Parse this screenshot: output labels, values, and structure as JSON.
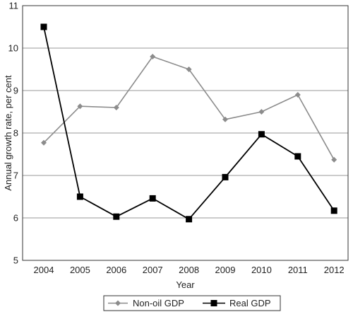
{
  "chart_data": {
    "type": "line",
    "title": "",
    "xlabel": "Year",
    "ylabel": "Annual growth rate, per cent",
    "categories": [
      "2004",
      "2005",
      "2006",
      "2007",
      "2008",
      "2009",
      "2010",
      "2011",
      "2012"
    ],
    "ylim": [
      5,
      11
    ],
    "yticks": [
      "5",
      "6",
      "7",
      "8",
      "9",
      "10",
      "11"
    ],
    "grid": "horizontal",
    "legend_position": "bottom",
    "series": [
      {
        "name": "Non-oil GDP",
        "marker": "diamond",
        "color": "#8c8c8c",
        "values": [
          7.77,
          8.63,
          8.6,
          9.8,
          9.5,
          8.32,
          8.5,
          8.9,
          7.37
        ]
      },
      {
        "name": "Real GDP",
        "marker": "square",
        "color": "#000000",
        "values": [
          10.5,
          6.5,
          6.03,
          6.46,
          5.97,
          6.96,
          7.97,
          7.45,
          6.17
        ]
      }
    ]
  }
}
